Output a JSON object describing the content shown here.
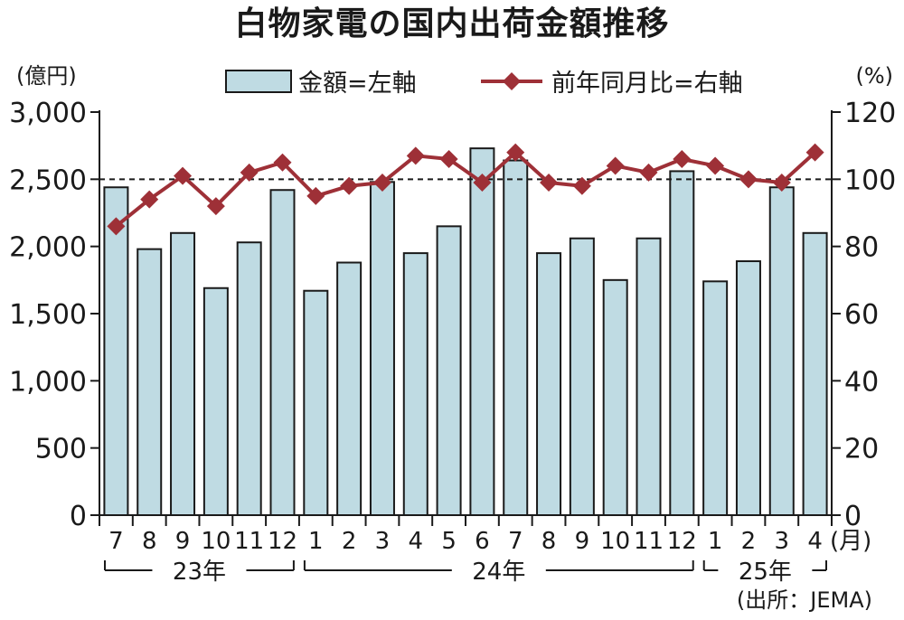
{
  "chart_data": {
    "type": "bar+line",
    "title": "白物家電の国内出荷金額推移",
    "left_unit": "(億円)",
    "right_unit": "(%)",
    "x_unit": "(月)",
    "source": "(出所：JEMA)",
    "legend": {
      "placement": "top-center",
      "bar_label": "金額=左軸",
      "line_label": "前年同月比=右軸"
    },
    "categories": [
      "7",
      "8",
      "9",
      "10",
      "11",
      "12",
      "1",
      "2",
      "3",
      "4",
      "5",
      "6",
      "7",
      "8",
      "9",
      "10",
      "11",
      "12",
      "1",
      "2",
      "3",
      "4"
    ],
    "years": [
      {
        "label": "23年",
        "from": 0,
        "to": 5
      },
      {
        "label": "24年",
        "from": 6,
        "to": 17
      },
      {
        "label": "25年",
        "from": 18,
        "to": 21
      }
    ],
    "series": [
      {
        "name": "金額=左軸",
        "kind": "bar",
        "axis": "left",
        "color": "#bfdbe3",
        "values": [
          2440,
          1980,
          2100,
          1690,
          2030,
          2420,
          1670,
          1880,
          2480,
          1950,
          2150,
          2730,
          2640,
          1950,
          2060,
          1750,
          2060,
          2560,
          1740,
          1890,
          2440,
          2100
        ]
      },
      {
        "name": "前年同月比=右軸",
        "kind": "line",
        "axis": "right",
        "color": "#9e3037",
        "values": [
          86,
          94,
          101,
          92,
          102,
          105,
          95,
          98,
          99,
          107,
          106,
          99,
          108,
          99,
          98,
          104,
          102,
          106,
          104,
          100,
          99,
          108
        ]
      }
    ],
    "left_axis": {
      "min": 0,
      "max": 3000,
      "ticks": [
        0,
        500,
        1000,
        1500,
        2000,
        2500,
        3000
      ],
      "tick_labels": [
        "0",
        "500",
        "1,000",
        "1,500",
        "2,000",
        "2,500",
        "3,000"
      ]
    },
    "right_axis": {
      "min": 0,
      "max": 120,
      "ticks": [
        0,
        20,
        40,
        60,
        80,
        100,
        120
      ],
      "tick_labels": [
        "0",
        "20",
        "40",
        "60",
        "80",
        "100",
        "120"
      ]
    },
    "reference_line": {
      "axis": "right",
      "value": 100,
      "style": "dashed"
    },
    "grid": false
  }
}
